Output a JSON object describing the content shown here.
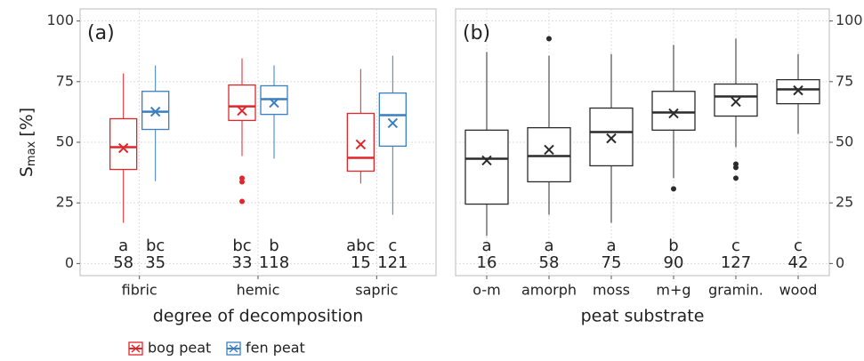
{
  "chart_data": [
    {
      "type": "box",
      "panel_label": "(a)",
      "x_label": "degree of decomposition",
      "y_label": "S",
      "y_label_sub": "max",
      "y_label_suffix": "[%]",
      "yaxis_side": "left",
      "grid": true,
      "legend": "bottom",
      "ylim": [
        -5,
        105
      ],
      "yticks": [
        0,
        25,
        50,
        75,
        100
      ],
      "categories": [
        "fibric",
        "hemic",
        "sapric"
      ],
      "series": [
        {
          "name": "bog peat",
          "color": "#e0262b",
          "whisker_low": [
            16.8,
            44.3,
            33
          ],
          "q1": [
            38.8,
            59,
            38.1
          ],
          "median": [
            48,
            64.8,
            43.6
          ],
          "q3": [
            59.7,
            73.6,
            61.9
          ],
          "whisker_high": [
            78.4,
            84.6,
            80.2
          ],
          "mean": [
            47.6,
            63,
            49.1
          ],
          "outliers": [
            [],
            [
              35.2,
              33.7,
              25.6
            ],
            []
          ],
          "letters": [
            "a",
            "bc",
            "abc"
          ],
          "n": [
            58,
            33,
            15
          ]
        },
        {
          "name": "fen peat",
          "color": "#3a7fc1",
          "whisker_low": [
            34,
            43.2,
            20.1
          ],
          "q1": [
            55.3,
            61.5,
            48.4
          ],
          "median": [
            62.6,
            67.8,
            61.2
          ],
          "q3": [
            71,
            73.3,
            70.3
          ],
          "whisker_high": [
            81.7,
            81.7,
            85.7
          ],
          "mean": [
            62.6,
            66.3,
            57.9
          ],
          "outliers": [
            [],
            [],
            []
          ],
          "letters": [
            "bc",
            "b",
            "c"
          ],
          "n": [
            35,
            118,
            121
          ]
        }
      ]
    },
    {
      "type": "box",
      "panel_label": "(b)",
      "x_label": "peat substrate",
      "yaxis_side": "right",
      "grid": true,
      "ylim": [
        -5,
        105
      ],
      "yticks": [
        0,
        25,
        50,
        75,
        100
      ],
      "categories": [
        "o-m",
        "amorph",
        "moss",
        "m+g",
        "gramin.",
        "wood"
      ],
      "series": [
        {
          "color": "#2b2b2b",
          "whisker_low": [
            11.4,
            20.1,
            16.8,
            35.2,
            48,
            53.5
          ],
          "q1": [
            24.5,
            33.7,
            40.3,
            55,
            60.8,
            65.9
          ],
          "median": [
            43.2,
            44.3,
            54.2,
            62.3,
            68.9,
            71.8
          ],
          "q3": [
            55,
            56,
            64.1,
            71,
            74,
            75.8
          ],
          "whisker_high": [
            87.2,
            85.7,
            86.4,
            90.1,
            92.7,
            86.4
          ],
          "mean": [
            42.5,
            46.9,
            51.6,
            61.9,
            66.7,
            71.4
          ],
          "outliers": [
            [],
            [
              92.7
            ],
            [],
            [
              30.8
            ],
            [
              41,
              39.6,
              35.2
            ],
            []
          ],
          "letters": [
            "a",
            "a",
            "a",
            "b",
            "c",
            "c"
          ],
          "n": [
            16,
            58,
            75,
            90,
            127,
            42
          ]
        }
      ]
    }
  ]
}
